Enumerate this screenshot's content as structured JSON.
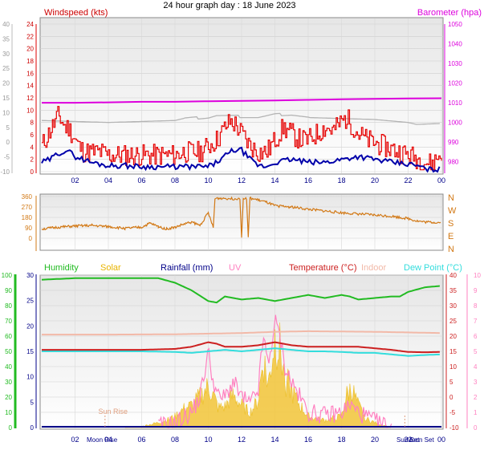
{
  "title": "24 hour graph day : 18 June 2023",
  "colors": {
    "wind": "#e60000",
    "windavg": "#0000aa",
    "baro": "#dd00dd",
    "baro_trace": "#b4b4b4",
    "direction": "#d27814",
    "humidity": "#22bb22",
    "solar": "#e8b400",
    "solar_fill": "#f3c843",
    "rainfall": "#000088",
    "uv": "#ff80c0",
    "temperature": "#cc2020",
    "indoor": "#f2b9a8",
    "dewpoint": "#33dddd",
    "frame": "#9a9a9a",
    "plotbg_top": "#ececec",
    "plotbg_bottom": "#ffffff"
  },
  "chart_data": [
    {
      "type": "line",
      "panel": "wind-barometer",
      "x_ticks": [
        "02",
        "04",
        "06",
        "08",
        "10",
        "12",
        "14",
        "16",
        "18",
        "20",
        "22",
        "00"
      ],
      "left_label": "Windspeed (kts)",
      "right_label": "Barometer (hpa)",
      "left_axis_outer": {
        "ticks": [
          -10,
          -5,
          0,
          5,
          10,
          15,
          20,
          25,
          30,
          35,
          40
        ]
      },
      "left_axis_inner": {
        "ticks": [
          0,
          2,
          4,
          6,
          8,
          10,
          12,
          14,
          16,
          18,
          20,
          22,
          24
        ]
      },
      "right_axis": {
        "ticks": [
          980,
          990,
          1000,
          1010,
          1020,
          1030,
          1040,
          1050
        ],
        "ylim": [
          975,
          1050
        ]
      },
      "grid": true,
      "series": [
        {
          "name": "Wind gust (kts)",
          "x": [
            0,
            0.4,
            0.8,
            1,
            1.2,
            1.4,
            1.6,
            1.8,
            2,
            2.2,
            2.5,
            3,
            3.5,
            4,
            5,
            6,
            7,
            8,
            8.5,
            9,
            9.5,
            10,
            10.5,
            11,
            11.3,
            11.6,
            12,
            12.5,
            13,
            13.5,
            14,
            14.5,
            15,
            15.5,
            16,
            16.5,
            17,
            17.5,
            18,
            18.3,
            18.6,
            19,
            19.5,
            20,
            20.5,
            21,
            21.5,
            22,
            22.5,
            23,
            23.4,
            23.7,
            24
          ],
          "y": [
            4,
            6,
            8,
            9,
            8,
            7,
            7,
            6,
            5,
            4,
            3,
            3,
            3,
            2.5,
            2.5,
            2.5,
            2.5,
            2.5,
            3,
            3,
            3,
            4,
            5,
            7,
            8,
            7.5,
            6,
            4,
            3,
            3,
            5,
            7,
            6,
            5,
            5,
            6,
            7,
            6.5,
            8,
            8.5,
            7.5,
            6,
            5,
            4.5,
            4,
            3.5,
            3,
            2.5,
            2,
            1.5,
            1,
            2,
            3
          ]
        },
        {
          "name": "Wind average (kts)",
          "x": [
            0,
            0.5,
            1,
            1.5,
            2,
            2.5,
            3,
            4,
            5,
            6,
            7,
            8,
            9,
            10,
            10.5,
            11,
            11.5,
            12,
            12.5,
            13,
            13.5,
            14,
            15,
            16,
            17,
            18,
            19,
            20,
            21,
            22,
            22.5,
            23,
            23.5,
            24
          ],
          "y": [
            1.5,
            2,
            3,
            3.5,
            2.5,
            2,
            1.5,
            1,
            1,
            0.8,
            0.8,
            0.8,
            0.8,
            0.8,
            1.5,
            2.5,
            3.5,
            3.5,
            2,
            1,
            0.8,
            1.5,
            2,
            1.5,
            1.5,
            2,
            2.5,
            2,
            1.5,
            1.2,
            1,
            0.5,
            0.2,
            0.5
          ]
        },
        {
          "name": "Barometer (hpa)",
          "x": [
            0,
            2,
            4,
            6,
            8,
            10,
            12,
            14,
            16,
            18,
            20,
            22,
            24
          ],
          "y": [
            1010,
            1010,
            1010.2,
            1010.5,
            1010.5,
            1010.8,
            1011,
            1011.2,
            1011.5,
            1011.8,
            1012,
            1012.2,
            1012.3
          ]
        },
        {
          "name": "Barometer trace",
          "x": [
            0,
            2,
            4,
            6,
            8,
            8.5,
            10,
            10.5,
            12,
            13,
            14,
            15,
            16,
            18,
            20,
            22,
            22.5,
            24
          ],
          "y": [
            1001,
            1000.5,
            1000,
            1000.5,
            1001,
            1002,
            1002.5,
            1003.5,
            1003,
            1002.5,
            1004,
            1004,
            1002.5,
            1002,
            1001.5,
            1000,
            999,
            999.5
          ]
        }
      ]
    },
    {
      "type": "line",
      "panel": "wind-direction",
      "left_axis": {
        "ticks": [
          0,
          90,
          180,
          270,
          360
        ],
        "ylim": [
          0,
          360
        ]
      },
      "right_axis_labels": [
        "N",
        "W",
        "S",
        "E",
        "N"
      ],
      "grid": true,
      "series": [
        {
          "name": "Wind direction (deg)",
          "x": [
            0,
            1,
            2,
            3,
            4,
            5,
            6,
            6.5,
            7,
            7.5,
            8,
            8.5,
            9,
            9.5,
            10,
            10.3,
            10.4,
            10.5,
            11,
            11.5,
            11.9,
            12,
            12.1,
            12.3,
            12.4,
            12.5,
            13,
            13.5,
            14,
            15,
            16,
            17,
            18,
            19,
            20,
            21,
            22,
            22.5,
            23,
            24
          ],
          "y": [
            80,
            95,
            105,
            110,
            100,
            85,
            95,
            130,
            100,
            80,
            95,
            120,
            140,
            110,
            220,
            90,
            340,
            345,
            345,
            340,
            345,
            0,
            345,
            340,
            0,
            345,
            330,
            310,
            280,
            270,
            250,
            235,
            220,
            210,
            200,
            190,
            170,
            150,
            140,
            135
          ]
        }
      ]
    },
    {
      "type": "area",
      "panel": "temperature-humidity-solar",
      "legend": [
        "Humidity",
        "Solar",
        "Rainfall (mm)",
        "UV",
        "Temperature (°C)",
        "Indoor",
        "Dew Point (°C)"
      ],
      "left_axis_humidity": {
        "ticks": [
          0,
          10,
          20,
          30,
          40,
          50,
          60,
          70,
          80,
          90,
          100
        ]
      },
      "left_axis_rain": {
        "ticks": [
          0,
          5,
          10,
          15,
          20,
          25,
          30
        ]
      },
      "right_axis_temp": {
        "ticks": [
          -10,
          -5,
          0,
          5,
          10,
          15,
          20,
          25,
          30,
          35,
          40
        ]
      },
      "right_axis_uv": {
        "ticks": [
          0,
          1,
          2,
          3,
          4,
          5,
          6,
          7,
          8,
          9,
          10
        ]
      },
      "annotations": [
        "Sun Rise",
        "Moon Rise",
        "Sun Set",
        "Moon Set"
      ],
      "grid": true,
      "series": [
        {
          "name": "Humidity (%)",
          "x": [
            0,
            2,
            4,
            6,
            7,
            8,
            9,
            10,
            10.5,
            11,
            12,
            13,
            14,
            15,
            16,
            17,
            18,
            18.5,
            19,
            20,
            21,
            21.5,
            22,
            23,
            24
          ],
          "y": [
            97,
            98,
            98,
            98,
            98,
            95,
            90,
            83,
            82,
            86,
            84,
            85,
            83,
            85,
            87,
            85,
            87,
            86,
            84,
            85,
            86,
            86,
            89,
            92,
            93
          ]
        },
        {
          "name": "Temperature (°C)",
          "x": [
            0,
            2,
            4,
            6,
            8,
            9,
            10,
            10.5,
            11,
            12,
            13,
            14,
            14.5,
            15,
            16,
            17,
            18,
            19,
            20,
            21,
            22,
            23,
            24
          ],
          "y": [
            15.5,
            15.5,
            15.5,
            15.5,
            15.8,
            16.5,
            18,
            17.5,
            16.5,
            16.5,
            17,
            18,
            17.5,
            17,
            16.5,
            16.5,
            16.5,
            16.5,
            16,
            15.5,
            14.8,
            14.7,
            14.8
          ]
        },
        {
          "name": "Dew Point (°C)",
          "x": [
            0,
            2,
            4,
            6,
            8,
            9,
            10,
            11,
            12,
            13,
            14,
            15,
            16,
            17,
            18,
            19,
            20,
            21,
            22,
            23,
            24
          ],
          "y": [
            15,
            15,
            15,
            15,
            14.8,
            14.5,
            15,
            15.5,
            15,
            15.5,
            16,
            15.5,
            15,
            15,
            14.8,
            14.5,
            14.5,
            14,
            13.5,
            13.8,
            14
          ]
        },
        {
          "name": "Indoor (°C)",
          "x": [
            0,
            4,
            8,
            12,
            14,
            16,
            20,
            24
          ],
          "y": [
            20.5,
            20.5,
            20.6,
            21,
            21.4,
            21.6,
            21.4,
            21
          ]
        },
        {
          "name": "Solar (W/m²)",
          "x": [
            5,
            6,
            7,
            7.5,
            8,
            8.5,
            9,
            9.5,
            10,
            10.3,
            10.6,
            11,
            11.5,
            12,
            12.5,
            13,
            13.3,
            13.6,
            14,
            14.3,
            14.6,
            15,
            15.5,
            16,
            17,
            18,
            18.3,
            18.6,
            19,
            19.5,
            20,
            20.5,
            21
          ],
          "y": [
            0,
            10,
            40,
            60,
            90,
            150,
            180,
            250,
            330,
            260,
            160,
            170,
            260,
            180,
            120,
            220,
            560,
            340,
            730,
            640,
            400,
            300,
            180,
            90,
            60,
            90,
            260,
            320,
            180,
            70,
            40,
            20,
            0
          ]
        },
        {
          "name": "UV",
          "x": [
            7,
            8,
            9,
            9.5,
            10,
            10.3,
            10.6,
            11,
            11.5,
            12,
            12.5,
            13,
            13.3,
            13.6,
            14,
            14.3,
            14.6,
            15,
            15.5,
            16,
            17,
            18,
            18.5,
            19,
            20,
            21
          ],
          "y": [
            0.1,
            0.3,
            1,
            2,
            5,
            3,
            2,
            2,
            3,
            2,
            1.5,
            2.5,
            6,
            4,
            7,
            6,
            4,
            3,
            2,
            1,
            0.8,
            1,
            1.5,
            1,
            0.4,
            0
          ]
        },
        {
          "name": "Rainfall (mm)",
          "x": [
            0,
            24
          ],
          "y": [
            0,
            0
          ]
        }
      ]
    }
  ]
}
